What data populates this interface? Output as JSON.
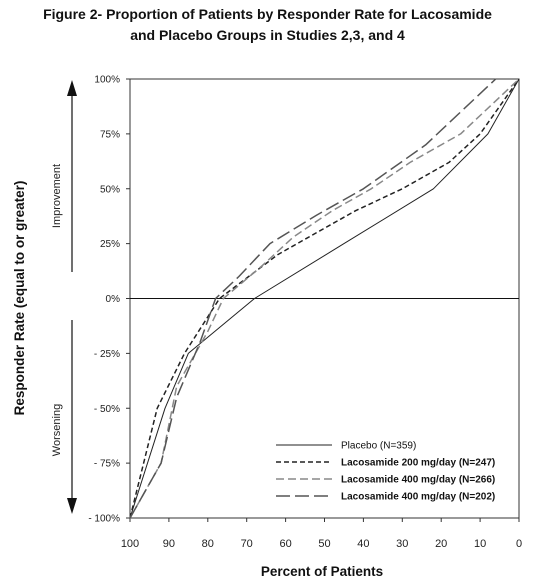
{
  "figure": {
    "title_line1": "Figure 2- Proportion of Patients by Responder Rate for Lacosamide",
    "title_line2": "and Placebo Groups in Studies 2,3, and 4"
  },
  "axes": {
    "y_label": "Responder Rate (equal to or greater)",
    "x_label": "Percent of Patients",
    "improvement_label": "Improvement",
    "worsening_label": "Worsening"
  },
  "legend": {
    "placement": "lower-right",
    "entries": [
      "Placebo (N=359)",
      "Lacosamide 200 mg/day (N=247)",
      "Lacosamide 400 mg/day (N=266)",
      "Lacosamide 400 mg/day (N=202)"
    ]
  },
  "chart_data": {
    "type": "line",
    "title": "Figure 2- Proportion of Patients by Responder Rate for Lacosamide and Placebo Groups in Studies 2,3, and 4",
    "xlabel": "Percent of Patients",
    "ylabel": "Responder Rate (equal to or greater)",
    "xlim": [
      100,
      0
    ],
    "ylim": [
      -100,
      100
    ],
    "x_reversed": true,
    "grid": false,
    "x_ticks": [
      100,
      90,
      80,
      70,
      60,
      50,
      40,
      30,
      20,
      10,
      0
    ],
    "x_tick_labels": [
      "100",
      "90",
      "80",
      "70",
      "60",
      "50",
      "40",
      "30",
      "20",
      "10",
      "0"
    ],
    "y_ticks": [
      100,
      75,
      50,
      25,
      0,
      -25,
      -50,
      -75,
      -100
    ],
    "y_tick_labels": [
      "100%",
      "75%",
      "50%",
      "25%",
      "0%",
      "- 25%",
      "- 50%",
      "- 75%",
      "- 100%"
    ],
    "series": [
      {
        "name": "Placebo (N=359)",
        "color": "#222222",
        "dash": "solid",
        "points": [
          [
            100,
            -100
          ],
          [
            91,
            -50
          ],
          [
            85,
            -25
          ],
          [
            68,
            0
          ],
          [
            45,
            25
          ],
          [
            22,
            50
          ],
          [
            8,
            75
          ],
          [
            0,
            100
          ]
        ]
      },
      {
        "name": "Lacosamide 200 mg/day (N=247)",
        "color": "#222222",
        "dash": "short",
        "points": [
          [
            100,
            -100
          ],
          [
            93,
            -50
          ],
          [
            86,
            -25
          ],
          [
            77,
            0
          ],
          [
            62,
            20
          ],
          [
            52,
            30
          ],
          [
            42,
            40
          ],
          [
            30,
            50
          ],
          [
            18,
            62
          ],
          [
            10,
            75
          ],
          [
            0,
            100
          ]
        ]
      },
      {
        "name": "Lacosamide 400 mg/day (N=266)",
        "color": "#888888",
        "dash": "medium",
        "points": [
          [
            100,
            -100
          ],
          [
            92,
            -75
          ],
          [
            88,
            -40
          ],
          [
            80,
            -15
          ],
          [
            76,
            0
          ],
          [
            66,
            15
          ],
          [
            58,
            28
          ],
          [
            48,
            40
          ],
          [
            38,
            50
          ],
          [
            28,
            62
          ],
          [
            15,
            75
          ],
          [
            0,
            100
          ]
        ]
      },
      {
        "name": "Lacosamide 400 mg/day (N=202)",
        "color": "#555555",
        "dash": "long",
        "points": [
          [
            100,
            -100
          ],
          [
            92,
            -75
          ],
          [
            88,
            -45
          ],
          [
            82,
            -20
          ],
          [
            78,
            0
          ],
          [
            72,
            10
          ],
          [
            64,
            25
          ],
          [
            52,
            38
          ],
          [
            40,
            50
          ],
          [
            24,
            70
          ],
          [
            6,
            100
          ]
        ]
      }
    ]
  }
}
